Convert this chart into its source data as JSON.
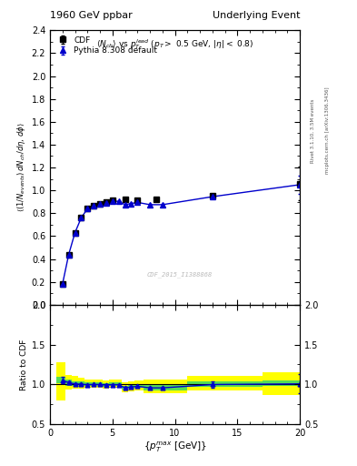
{
  "title_left": "1960 GeV ppbar",
  "title_right": "Underlying Event",
  "subtitle": "$\\langle N_{ch}\\rangle$ vs $p_T^{lead}$ ($p_T >$ 0.5 GeV, $|\\eta| <$ 0.8)",
  "ylabel_main": "$(1/N_{events})\\,dN_{ch}/d\\eta\\,d\\phi$",
  "ylabel_ratio": "Ratio to CDF",
  "xlabel": "$\\{p_T^{max}\\}$ [GeV]",
  "watermark": "CDF_2015_I1388868",
  "right_label": "mcplots.cern.ch [arXiv:1306.3436]",
  "rivet_label": "Rivet 3.1.10, 3.5M events",
  "legend_cdf": "CDF",
  "legend_pythia": "Pythia 8.308 default",
  "cdf_x": [
    1.0,
    1.5,
    2.0,
    2.5,
    3.0,
    3.5,
    4.0,
    4.5,
    5.0,
    6.0,
    7.0,
    8.5,
    13.0,
    20.0
  ],
  "cdf_y": [
    0.18,
    0.44,
    0.63,
    0.76,
    0.84,
    0.87,
    0.88,
    0.9,
    0.91,
    0.92,
    0.91,
    0.92,
    0.95,
    1.06
  ],
  "cdf_yerr": [
    0.012,
    0.012,
    0.01,
    0.01,
    0.01,
    0.01,
    0.01,
    0.01,
    0.01,
    0.01,
    0.01,
    0.01,
    0.02,
    0.15
  ],
  "pythia_x": [
    1.0,
    1.5,
    2.0,
    2.5,
    3.0,
    3.5,
    4.0,
    4.5,
    5.0,
    5.5,
    6.0,
    6.5,
    7.0,
    8.0,
    9.0,
    13.0,
    20.0
  ],
  "pythia_y": [
    0.18,
    0.44,
    0.63,
    0.76,
    0.84,
    0.87,
    0.88,
    0.89,
    0.905,
    0.905,
    0.875,
    0.885,
    0.895,
    0.875,
    0.875,
    0.945,
    1.05
  ],
  "pythia_yerr": [
    0.003,
    0.003,
    0.003,
    0.003,
    0.003,
    0.003,
    0.003,
    0.003,
    0.003,
    0.003,
    0.003,
    0.003,
    0.003,
    0.005,
    0.005,
    0.01,
    0.08
  ],
  "ratio_x": [
    1.0,
    1.5,
    2.0,
    2.5,
    3.0,
    3.5,
    4.0,
    4.5,
    5.0,
    5.5,
    6.0,
    6.5,
    7.0,
    8.0,
    9.0,
    13.0,
    20.0
  ],
  "ratio_y": [
    1.05,
    1.02,
    1.005,
    1.0,
    0.995,
    0.998,
    0.997,
    0.99,
    0.995,
    0.995,
    0.955,
    0.965,
    0.975,
    0.955,
    0.955,
    0.997,
    1.005
  ],
  "ratio_yerr": [
    0.04,
    0.02,
    0.012,
    0.01,
    0.01,
    0.01,
    0.01,
    0.01,
    0.01,
    0.01,
    0.01,
    0.01,
    0.01,
    0.015,
    0.015,
    0.035,
    0.12
  ],
  "band_edges": [
    0.5,
    1.25,
    1.75,
    2.25,
    2.75,
    3.25,
    3.75,
    4.25,
    4.75,
    5.25,
    5.75,
    6.25,
    6.75,
    7.5,
    8.5,
    11.0,
    17.0,
    20.5
  ],
  "green_lo": [
    1.01,
    0.98,
    0.98,
    0.977,
    0.977,
    0.977,
    0.977,
    0.968,
    0.977,
    0.977,
    0.937,
    0.947,
    0.957,
    0.928,
    0.928,
    0.967,
    0.977
  ],
  "green_hi": [
    1.09,
    1.06,
    1.04,
    1.033,
    1.023,
    1.023,
    1.023,
    1.013,
    1.023,
    1.023,
    0.983,
    0.993,
    1.003,
    0.993,
    0.993,
    1.033,
    1.043
  ],
  "yellow_lo": [
    0.8,
    0.93,
    0.94,
    0.945,
    0.952,
    0.954,
    0.954,
    0.944,
    0.954,
    0.954,
    0.904,
    0.914,
    0.924,
    0.884,
    0.884,
    0.924,
    0.864
  ],
  "yellow_hi": [
    1.28,
    1.12,
    1.1,
    1.083,
    1.063,
    1.063,
    1.063,
    1.053,
    1.063,
    1.063,
    1.023,
    1.033,
    1.043,
    1.063,
    1.063,
    1.103,
    1.153
  ],
  "xlim": [
    0,
    20
  ],
  "ylim_main": [
    0.0,
    2.4
  ],
  "ylim_ratio": [
    0.5,
    2.0
  ],
  "main_color": "#0000cc",
  "cdf_color": "#000000",
  "bg_color": "#ffffff"
}
